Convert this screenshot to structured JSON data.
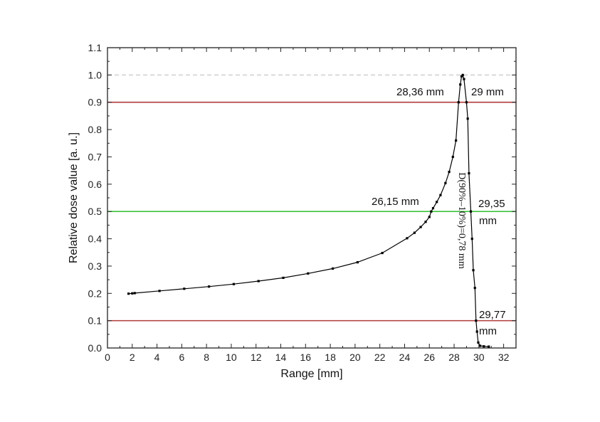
{
  "chart_data": {
    "type": "line",
    "xlabel": "Range [mm]",
    "ylabel": "Relative dose value [a. u.]",
    "xlim": [
      0,
      33
    ],
    "ylim": [
      0,
      1.1
    ],
    "x_ticks": [
      "0",
      "2",
      "4",
      "6",
      "8",
      "10",
      "12",
      "14",
      "16",
      "18",
      "20",
      "22",
      "24",
      "26",
      "28",
      "30",
      "32"
    ],
    "y_ticks": [
      "0.0",
      "0.1",
      "0.2",
      "0.3",
      "0.4",
      "0.5",
      "0.6",
      "0.7",
      "0.8",
      "0.9",
      "1.0",
      "1.1"
    ],
    "series": [
      {
        "color": "#000000",
        "points": [
          [
            1.7,
            0.199
          ],
          [
            2.0,
            0.2
          ],
          [
            2.2,
            0.201
          ],
          [
            4.2,
            0.209
          ],
          [
            6.2,
            0.217
          ],
          [
            8.2,
            0.225
          ],
          [
            10.2,
            0.234
          ],
          [
            12.2,
            0.245
          ],
          [
            14.2,
            0.257
          ],
          [
            16.2,
            0.273
          ],
          [
            18.2,
            0.291
          ],
          [
            20.2,
            0.314
          ],
          [
            22.2,
            0.348
          ],
          [
            24.2,
            0.402
          ],
          [
            24.8,
            0.422
          ],
          [
            25.3,
            0.443
          ],
          [
            25.7,
            0.462
          ],
          [
            26.0,
            0.48
          ],
          [
            26.15,
            0.5
          ],
          [
            26.3,
            0.512
          ],
          [
            26.6,
            0.535
          ],
          [
            26.9,
            0.56
          ],
          [
            27.3,
            0.604
          ],
          [
            27.6,
            0.645
          ],
          [
            27.9,
            0.7
          ],
          [
            28.15,
            0.76
          ],
          [
            28.36,
            0.9
          ],
          [
            28.5,
            0.965
          ],
          [
            28.6,
            0.995
          ],
          [
            28.7,
            1.0
          ],
          [
            28.8,
            0.985
          ],
          [
            29.0,
            0.9
          ],
          [
            29.1,
            0.84
          ],
          [
            29.2,
            0.64
          ],
          [
            29.35,
            0.5
          ],
          [
            29.45,
            0.4
          ],
          [
            29.55,
            0.285
          ],
          [
            29.68,
            0.22
          ],
          [
            29.77,
            0.1
          ],
          [
            29.85,
            0.06
          ],
          [
            29.95,
            0.02
          ],
          [
            30.1,
            0.008
          ],
          [
            30.4,
            0.006
          ],
          [
            30.8,
            0.005
          ]
        ]
      }
    ],
    "reference_lines": [
      {
        "y": 1.0,
        "color": "#c8c8c8",
        "style": "dashed"
      },
      {
        "y": 0.9,
        "color": "#b03a3a",
        "style": "solid"
      },
      {
        "y": 0.5,
        "color": "#3ec43e",
        "style": "solid"
      },
      {
        "y": 0.1,
        "color": "#b03a3a",
        "style": "solid"
      }
    ],
    "annotations": {
      "a1": "28,36 mm",
      "a2": "29 mm",
      "a3": "26,15 mm",
      "a4_line1": "29,35",
      "a4_line2": "mm",
      "a5_line1": "29,77",
      "a5_line2": "mm",
      "a6": "D(90%–10%)=0,78 mm"
    },
    "grid": false,
    "legend": "none"
  }
}
